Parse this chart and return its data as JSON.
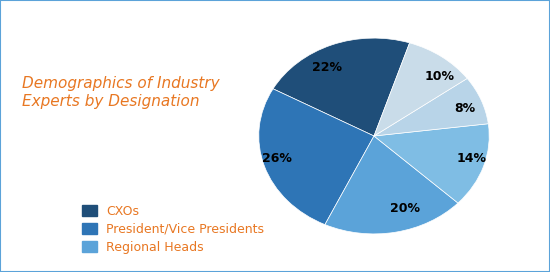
{
  "title": "Demographics of Industry\nExperts by Designation",
  "title_color": "#E87722",
  "slices": [
    22,
    26,
    20,
    14,
    8,
    10
  ],
  "labels": [
    "22%",
    "26%",
    "20%",
    "14%",
    "8%",
    "10%"
  ],
  "colors": [
    "#1F4E79",
    "#2E75B6",
    "#5BA3D9",
    "#7FBDE4",
    "#B8D4E8",
    "#C9DCE9"
  ],
  "startangle": 72,
  "legend_labels": [
    "CXOs",
    "President/Vice Presidents",
    "Regional Heads"
  ],
  "legend_colors": [
    "#1F4E79",
    "#2E75B6",
    "#5BA3D9"
  ],
  "background_color": "#FFFFFF",
  "border_color": "#5BA3D9",
  "label_fontsize": 9,
  "legend_fontsize": 9
}
